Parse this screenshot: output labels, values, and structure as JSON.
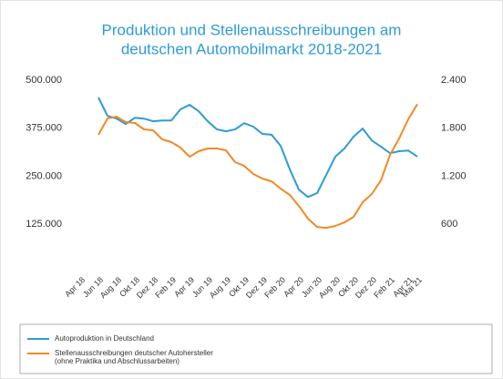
{
  "chart_data": {
    "type": "line",
    "title": [
      "Produktion und Stellenausschreibungen am",
      "deutschen Automobilmarkt  2018-2021"
    ],
    "categories": [
      "Apr 18",
      null,
      "Jun 18",
      null,
      "Aug 18",
      null,
      "Okt 18",
      null,
      "Dez 18",
      null,
      "Feb 19",
      null,
      "Apr 19",
      null,
      "Jun 19",
      null,
      "Aug 19",
      null,
      "Okt 19",
      null,
      "Dez 19",
      null,
      "Feb 20",
      null,
      "Apr 20",
      null,
      "Jun 20",
      null,
      "Aug 20",
      null,
      "Okt 20",
      null,
      "Dez 20",
      null,
      "Feb 21",
      null,
      "Apr 21",
      "Mai 21"
    ],
    "series": [
      {
        "name": "Autoproduktion in Deutschland",
        "color": "#2e9bd6",
        "values": [
          null,
          null,
          455000,
          407000,
          400000,
          386000,
          402000,
          400000,
          393000,
          395000,
          395000,
          424000,
          436000,
          419000,
          393000,
          372000,
          367000,
          372000,
          388000,
          379000,
          360000,
          358000,
          329000,
          268000,
          215000,
          196000,
          206000,
          253000,
          301000,
          322000,
          353000,
          374000,
          343000,
          327000,
          310000,
          315000,
          317000,
          301000
        ]
      },
      {
        "name": "Stellenausschreibungen deutscher Autohersteller",
        "description": "(ohne Praktika und Abschlussarbeiten)",
        "color": "#f08a24",
        "axis": "y2",
        "values": [
          null,
          null,
          1717,
          1922,
          1944,
          1876,
          1865,
          1785,
          1774,
          1660,
          1626,
          1557,
          1443,
          1512,
          1546,
          1546,
          1523,
          1375,
          1329,
          1227,
          1170,
          1136,
          1044,
          965,
          828,
          669,
          566,
          555,
          578,
          623,
          692,
          874,
          977,
          1147,
          1466,
          1671,
          1910,
          2100
        ]
      }
    ],
    "ylim": [
      0,
      500000
    ],
    "yticks": [
      {
        "value": 125000,
        "label": "125.000"
      },
      {
        "value": 250000,
        "label": "250.000"
      },
      {
        "value": 375000,
        "label": "375.000"
      },
      {
        "value": 500000,
        "label": "500.000"
      }
    ],
    "y2lim": [
      0,
      2400
    ],
    "y2ticks": [
      600,
      {
        "value": 1200,
        "label": "1.200"
      },
      {
        "value": 1800,
        "label": "1.800"
      },
      {
        "value": 2400,
        "label": "2.400"
      }
    ],
    "grid": false
  }
}
